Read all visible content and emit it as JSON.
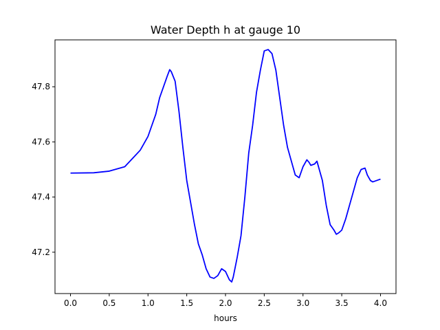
{
  "chart_data": {
    "type": "line",
    "title": "Water Depth h at gauge 10",
    "xlabel": "hours",
    "ylabel": "",
    "xlim": [
      -0.2,
      4.2
    ],
    "ylim": [
      47.05,
      47.97
    ],
    "xticks": [
      0.0,
      0.5,
      1.0,
      1.5,
      2.0,
      2.5,
      3.0,
      3.5,
      4.0
    ],
    "xtick_labels": [
      "0.0",
      "0.5",
      "1.0",
      "1.5",
      "2.0",
      "2.5",
      "3.0",
      "3.5",
      "4.0"
    ],
    "yticks": [
      47.2,
      47.4,
      47.6,
      47.8
    ],
    "ytick_labels": [
      "47.2",
      "47.4",
      "47.6",
      "47.8"
    ],
    "grid": false,
    "series": [
      {
        "color": "#0000ff",
        "x": [
          0.0,
          0.3,
          0.5,
          0.7,
          0.8,
          0.9,
          1.0,
          1.1,
          1.15,
          1.2,
          1.25,
          1.28,
          1.3,
          1.35,
          1.4,
          1.45,
          1.5,
          1.55,
          1.6,
          1.65,
          1.7,
          1.75,
          1.8,
          1.85,
          1.9,
          1.95,
          2.0,
          2.05,
          2.08,
          2.1,
          2.15,
          2.2,
          2.25,
          2.3,
          2.35,
          2.4,
          2.45,
          2.5,
          2.55,
          2.6,
          2.65,
          2.7,
          2.75,
          2.8,
          2.85,
          2.9,
          2.95,
          3.0,
          3.05,
          3.08,
          3.1,
          3.15,
          3.18,
          3.2,
          3.25,
          3.3,
          3.35,
          3.4,
          3.43,
          3.46,
          3.5,
          3.55,
          3.6,
          3.65,
          3.7,
          3.75,
          3.8,
          3.83,
          3.87,
          3.9,
          3.95,
          4.0
        ],
        "y": [
          47.487,
          47.488,
          47.494,
          47.51,
          47.54,
          47.57,
          47.62,
          47.7,
          47.76,
          47.8,
          47.84,
          47.862,
          47.855,
          47.82,
          47.71,
          47.58,
          47.46,
          47.38,
          47.3,
          47.23,
          47.19,
          47.14,
          47.11,
          47.105,
          47.115,
          47.14,
          47.13,
          47.1,
          47.092,
          47.11,
          47.18,
          47.26,
          47.4,
          47.56,
          47.66,
          47.78,
          47.86,
          47.93,
          47.935,
          47.92,
          47.86,
          47.76,
          47.66,
          47.58,
          47.53,
          47.48,
          47.47,
          47.51,
          47.535,
          47.525,
          47.515,
          47.52,
          47.53,
          47.51,
          47.46,
          47.37,
          47.3,
          47.28,
          47.265,
          47.27,
          47.28,
          47.32,
          47.37,
          47.42,
          47.47,
          47.5,
          47.505,
          47.48,
          47.46,
          47.455,
          47.46,
          47.465
        ]
      }
    ]
  }
}
